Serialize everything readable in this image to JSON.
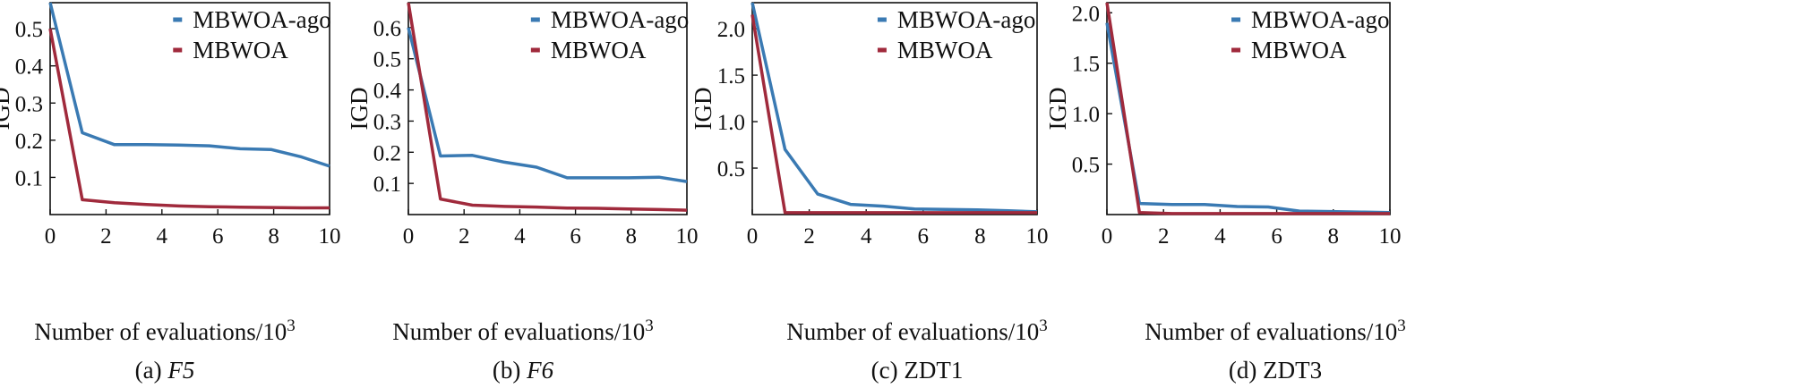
{
  "colors": {
    "mbwoa_ago": "#3a7ab3",
    "mbwoa": "#a02a3c",
    "axis": "#111111",
    "background": "#ffffff"
  },
  "chart_data": [
    {
      "type": "line",
      "caption_prefix": "(a) ",
      "caption_name": "F5",
      "caption_italic": true,
      "xlabel": "Number of evaluations/10",
      "xlabel_sup": "3",
      "ylabel": "IGD",
      "xlim": [
        0,
        10
      ],
      "ylim": [
        0,
        0.57
      ],
      "xticks": [
        0,
        2,
        4,
        6,
        8,
        10
      ],
      "xtick_labels": [
        "0",
        "2",
        "4",
        "6",
        "8",
        "10"
      ],
      "yticks": [
        0.1,
        0.2,
        0.3,
        0.4,
        0.5
      ],
      "ytick_labels": [
        "0.1",
        "0.2",
        "0.3",
        "0.4",
        "0.5"
      ],
      "grid": false,
      "legend_position": "top-right",
      "series": [
        {
          "name": "MBWOA-ago",
          "color_key": "mbwoa_ago",
          "x": [
            0,
            1.15,
            2.3,
            3.45,
            4.6,
            5.7,
            6.8,
            7.9,
            9,
            10
          ],
          "y": [
            0.57,
            0.22,
            0.188,
            0.188,
            0.187,
            0.185,
            0.177,
            0.175,
            0.155,
            0.13
          ]
        },
        {
          "name": "MBWOA",
          "color_key": "mbwoa",
          "x": [
            0,
            1.15,
            2.3,
            3.45,
            4.6,
            5.7,
            6.8,
            7.9,
            9,
            10
          ],
          "y": [
            0.5,
            0.04,
            0.032,
            0.027,
            0.023,
            0.021,
            0.02,
            0.019,
            0.018,
            0.018
          ]
        }
      ]
    },
    {
      "type": "line",
      "caption_prefix": "(b) ",
      "caption_name": "F6",
      "caption_italic": true,
      "xlabel": "Number of evaluations/10",
      "xlabel_sup": "3",
      "ylabel": "IGD",
      "xlim": [
        0,
        10
      ],
      "ylim": [
        0,
        0.68
      ],
      "xticks": [
        0,
        2,
        4,
        6,
        8,
        10
      ],
      "xtick_labels": [
        "0",
        "2",
        "4",
        "6",
        "8",
        "10"
      ],
      "yticks": [
        0.1,
        0.2,
        0.3,
        0.4,
        0.5,
        0.6
      ],
      "ytick_labels": [
        "0.1",
        "0.2",
        "0.3",
        "0.4",
        "0.5",
        "0.6"
      ],
      "grid": false,
      "legend_position": "top-right",
      "series": [
        {
          "name": "MBWOA-ago",
          "color_key": "mbwoa_ago",
          "x": [
            0,
            1.15,
            2.3,
            3.45,
            4.6,
            5.7,
            6.8,
            7.9,
            9,
            10
          ],
          "y": [
            0.6,
            0.188,
            0.19,
            0.168,
            0.152,
            0.118,
            0.118,
            0.118,
            0.12,
            0.106
          ]
        },
        {
          "name": "MBWOA",
          "color_key": "mbwoa",
          "x": [
            0,
            1.15,
            2.3,
            3.45,
            4.6,
            5.7,
            6.8,
            7.9,
            9,
            10
          ],
          "y": [
            0.68,
            0.05,
            0.03,
            0.026,
            0.024,
            0.021,
            0.02,
            0.018,
            0.016,
            0.014
          ]
        }
      ]
    },
    {
      "type": "line",
      "caption_prefix": "(c) ",
      "caption_name": "ZDT1",
      "caption_italic": false,
      "xlabel": "Number of evaluations/10",
      "xlabel_sup": "3",
      "ylabel": "IGD",
      "xlim": [
        0,
        10
      ],
      "ylim": [
        0,
        2.28
      ],
      "xticks": [
        0,
        2,
        4,
        6,
        8,
        10
      ],
      "xtick_labels": [
        "0",
        "2",
        "4",
        "6",
        "8",
        "10"
      ],
      "yticks": [
        0.5,
        1.0,
        1.5,
        2.0
      ],
      "ytick_labels": [
        "0.5",
        "1.0",
        "1.5",
        "2.0"
      ],
      "grid": false,
      "legend_position": "top-right",
      "series": [
        {
          "name": "MBWOA-ago",
          "color_key": "mbwoa_ago",
          "x": [
            0,
            1.15,
            2.3,
            3.45,
            4.6,
            5.7,
            6.8,
            7.9,
            9,
            10
          ],
          "y": [
            2.28,
            0.7,
            0.22,
            0.11,
            0.09,
            0.06,
            0.055,
            0.05,
            0.04,
            0.03
          ]
        },
        {
          "name": "MBWOA",
          "color_key": "mbwoa",
          "x": [
            0,
            1.15,
            2.3,
            3.45,
            4.6,
            5.7,
            6.8,
            7.9,
            9,
            10
          ],
          "y": [
            2.15,
            0.02,
            0.02,
            0.02,
            0.02,
            0.02,
            0.02,
            0.02,
            0.02,
            0.02
          ]
        }
      ]
    },
    {
      "type": "line",
      "caption_prefix": "(d) ",
      "caption_name": "ZDT3",
      "caption_italic": false,
      "xlabel": "Number of evaluations/10",
      "xlabel_sup": "3",
      "ylabel": "IGD",
      "xlim": [
        0,
        10
      ],
      "ylim": [
        0,
        2.1
      ],
      "xticks": [
        0,
        2,
        4,
        6,
        8,
        10
      ],
      "xtick_labels": [
        "0",
        "2",
        "4",
        "6",
        "8",
        "10"
      ],
      "yticks": [
        0.5,
        1.0,
        1.5,
        2.0
      ],
      "ytick_labels": [
        "0.5",
        "1.0",
        "1.5",
        "2.0"
      ],
      "grid": false,
      "legend_position": "top-right",
      "series": [
        {
          "name": "MBWOA-ago",
          "color_key": "mbwoa_ago",
          "x": [
            0,
            1.15,
            2.3,
            3.45,
            4.6,
            5.7,
            6.8,
            7.9,
            9,
            10
          ],
          "y": [
            1.9,
            0.11,
            0.1,
            0.1,
            0.08,
            0.075,
            0.035,
            0.03,
            0.025,
            0.02
          ]
        },
        {
          "name": "MBWOA",
          "color_key": "mbwoa",
          "x": [
            0,
            1.15,
            2.3,
            3.45,
            4.6,
            5.7,
            6.8,
            7.9,
            9,
            10
          ],
          "y": [
            2.1,
            0.02,
            0.01,
            0.01,
            0.01,
            0.01,
            0.01,
            0.01,
            0.01,
            0.01
          ]
        }
      ]
    }
  ]
}
